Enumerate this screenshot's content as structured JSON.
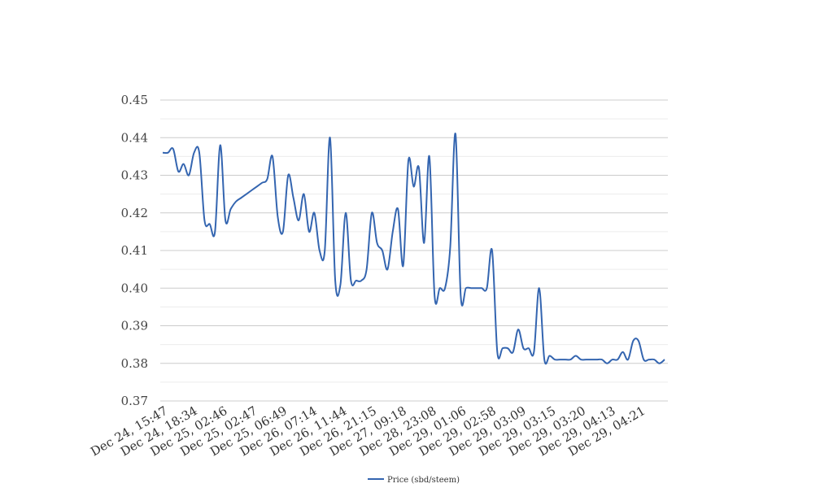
{
  "chart_data": {
    "type": "line",
    "title": "",
    "xlabel": "",
    "ylabel": "",
    "ylim": [
      0.37,
      0.45
    ],
    "yticks": [
      "0.45",
      "0.44",
      "0.43",
      "0.42",
      "0.41",
      "0.40",
      "0.39",
      "0.38",
      "0.37"
    ],
    "xtick_labels": [
      "Dec 24, 15:47",
      "Dec 24, 18:34",
      "Dec 25, 02:46",
      "Dec 25, 02:47",
      "Dec 25, 06:49",
      "Dec 26, 07:14",
      "Dec 26, 11:44",
      "Dec 26, 21:15",
      "Dec 27, 09:18",
      "Dec 28, 23:08",
      "Dec 29, 01:06",
      "Dec 29, 02:58",
      "Dec 29, 03:09",
      "Dec 29, 03:15",
      "Dec 29, 03:20",
      "Dec 29, 04:13",
      "Dec 29, 04:21"
    ],
    "grid": true,
    "legend_position": "bottom",
    "series": [
      {
        "name": "Price (sbd/steem)",
        "color": "#3465b0",
        "values": [
          0.436,
          0.436,
          0.437,
          0.431,
          0.433,
          0.43,
          0.436,
          0.436,
          0.418,
          0.417,
          0.415,
          0.438,
          0.418,
          0.421,
          0.423,
          0.424,
          0.425,
          0.426,
          0.427,
          0.428,
          0.429,
          0.435,
          0.419,
          0.415,
          0.43,
          0.424,
          0.418,
          0.425,
          0.415,
          0.42,
          0.41,
          0.41,
          0.44,
          0.402,
          0.401,
          0.42,
          0.402,
          0.402,
          0.402,
          0.405,
          0.42,
          0.412,
          0.41,
          0.405,
          0.415,
          0.421,
          0.406,
          0.434,
          0.427,
          0.432,
          0.412,
          0.435,
          0.398,
          0.4,
          0.4,
          0.411,
          0.441,
          0.398,
          0.4,
          0.4,
          0.4,
          0.4,
          0.4,
          0.41,
          0.383,
          0.384,
          0.384,
          0.383,
          0.389,
          0.384,
          0.384,
          0.383,
          0.4,
          0.381,
          0.382,
          0.381,
          0.381,
          0.381,
          0.381,
          0.382,
          0.381,
          0.381,
          0.381,
          0.381,
          0.381,
          0.38,
          0.381,
          0.381,
          0.383,
          0.381,
          0.386,
          0.386,
          0.381,
          0.381,
          0.381,
          0.38,
          0.381
        ]
      }
    ]
  }
}
